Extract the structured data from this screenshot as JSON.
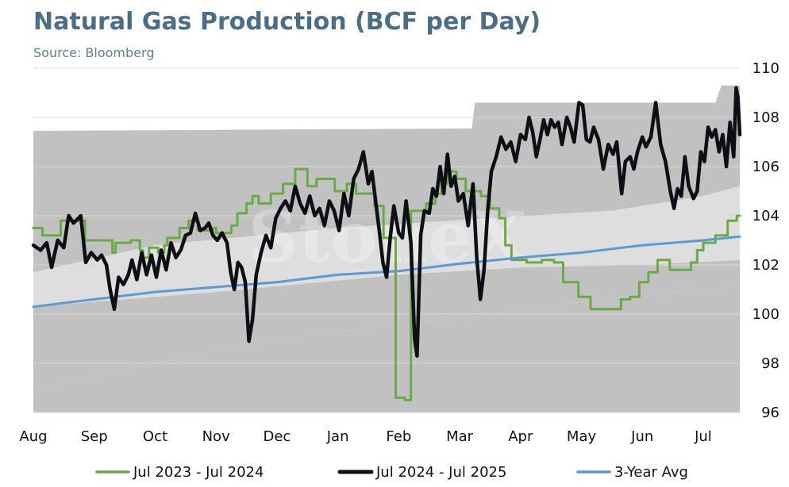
{
  "chart_data": {
    "type": "area",
    "title": "Natural Gas Production (BCF per Day)",
    "subtitle": "Source: Bloomberg",
    "watermark": "StoneX",
    "ylim": [
      96,
      110
    ],
    "yticks": [
      96,
      98,
      100,
      102,
      104,
      106,
      108,
      110
    ],
    "x_range": [
      0,
      11.6
    ],
    "month_labels": [
      "Aug",
      "Sep",
      "Oct",
      "Nov",
      "Dec",
      "Jan",
      "Feb",
      "Mar",
      "Apr",
      "May",
      "Jun",
      "Jul"
    ],
    "grid": "horizontal",
    "legend_position": "bottom",
    "colors": {
      "band_outer": "#c2c1c1",
      "band_inner": "#dedede",
      "series_green": "#6aaa45",
      "series_black": "#0d0f14",
      "series_blue": "#5b9bd5",
      "title": "#4a6e86",
      "subtitle": "#5b7f97"
    },
    "bands": {
      "outer_upper": [
        [
          0,
          107.45
        ],
        [
          7.2,
          107.55
        ],
        [
          7.25,
          108.6
        ],
        [
          11.2,
          108.6
        ],
        [
          11.3,
          109.3
        ],
        [
          11.6,
          109.3
        ]
      ],
      "inner_upper": [
        [
          0,
          101.7
        ],
        [
          2,
          102.8
        ],
        [
          5,
          103.5
        ],
        [
          7.5,
          103.9
        ],
        [
          9.5,
          104.2
        ],
        [
          11,
          104.8
        ],
        [
          11.6,
          105.2
        ]
      ],
      "inner_lower": [
        [
          0,
          100.3
        ],
        [
          3,
          100.9
        ],
        [
          6,
          101.6
        ],
        [
          8,
          101.9
        ],
        [
          10,
          102.0
        ],
        [
          11.6,
          102.2
        ]
      ],
      "outer_lower": [
        [
          0,
          96.9
        ],
        [
          1,
          97.5
        ],
        [
          2,
          98.0
        ],
        [
          3,
          98.5
        ],
        [
          4.5,
          99.1
        ],
        [
          6,
          99.6
        ],
        [
          7,
          99.8
        ],
        [
          8,
          100.2
        ],
        [
          9,
          100.5
        ],
        [
          10,
          100.8
        ],
        [
          11.6,
          101.1
        ]
      ]
    },
    "series": [
      {
        "name": "Jul 2023 - Jul 2024",
        "color": "#6aaa45",
        "step": true,
        "points": [
          [
            0,
            103.5
          ],
          [
            0.15,
            103.2
          ],
          [
            0.45,
            103.8
          ],
          [
            0.85,
            103.0
          ],
          [
            1.3,
            102.5
          ],
          [
            1.35,
            102.9
          ],
          [
            1.6,
            103.0
          ],
          [
            1.75,
            102.6
          ],
          [
            1.8,
            102.3
          ],
          [
            1.9,
            102.7
          ],
          [
            2.05,
            102.5
          ],
          [
            2.15,
            102.8
          ],
          [
            2.2,
            103.1
          ],
          [
            2.4,
            103.5
          ],
          [
            2.55,
            103.8
          ],
          [
            2.7,
            103.4
          ],
          [
            2.95,
            103.5
          ],
          [
            3.0,
            103.3
          ],
          [
            3.25,
            103.6
          ],
          [
            3.35,
            104.1
          ],
          [
            3.5,
            104.5
          ],
          [
            3.6,
            104.8
          ],
          [
            3.7,
            104.5
          ],
          [
            3.9,
            104.9
          ],
          [
            4.1,
            105.3
          ],
          [
            4.3,
            105.9
          ],
          [
            4.5,
            105.2
          ],
          [
            4.65,
            105.5
          ],
          [
            4.95,
            105.0
          ],
          [
            5.15,
            105.3
          ],
          [
            5.3,
            104.9
          ],
          [
            5.6,
            104.4
          ],
          [
            5.75,
            103.1
          ],
          [
            5.95,
            96.6
          ],
          [
            6.1,
            96.5
          ],
          [
            6.2,
            104.2
          ],
          [
            6.45,
            104.5
          ],
          [
            6.6,
            104.9
          ],
          [
            6.7,
            105.3
          ],
          [
            6.8,
            105.8
          ],
          [
            6.95,
            105.5
          ],
          [
            7.1,
            105.0
          ],
          [
            7.35,
            104.8
          ],
          [
            7.5,
            104.3
          ],
          [
            7.65,
            103.9
          ],
          [
            7.75,
            102.8
          ],
          [
            7.85,
            102.2
          ],
          [
            8.1,
            102.1
          ],
          [
            8.35,
            102.2
          ],
          [
            8.55,
            102.1
          ],
          [
            8.7,
            101.3
          ],
          [
            8.95,
            100.7
          ],
          [
            9.15,
            100.2
          ],
          [
            9.45,
            100.2
          ],
          [
            9.65,
            100.6
          ],
          [
            9.8,
            100.7
          ],
          [
            9.95,
            101.3
          ],
          [
            10.1,
            101.7
          ],
          [
            10.25,
            102.2
          ],
          [
            10.45,
            101.8
          ],
          [
            10.8,
            102.1
          ],
          [
            10.9,
            102.6
          ],
          [
            11.0,
            102.9
          ],
          [
            11.2,
            103.2
          ],
          [
            11.4,
            103.8
          ],
          [
            11.55,
            104.0
          ],
          [
            11.6,
            104.0
          ]
        ]
      },
      {
        "name": "Jul 2024 - Jul 2025",
        "color": "#0d0f14",
        "step": false,
        "points": [
          [
            0,
            102.8
          ],
          [
            0.12,
            102.6
          ],
          [
            0.22,
            102.9
          ],
          [
            0.3,
            101.9
          ],
          [
            0.4,
            103.0
          ],
          [
            0.5,
            102.7
          ],
          [
            0.58,
            104.0
          ],
          [
            0.66,
            103.7
          ],
          [
            0.78,
            104.0
          ],
          [
            0.86,
            102.1
          ],
          [
            0.95,
            102.5
          ],
          [
            1.05,
            102.2
          ],
          [
            1.12,
            102.4
          ],
          [
            1.2,
            102.0
          ],
          [
            1.26,
            101.0
          ],
          [
            1.33,
            100.2
          ],
          [
            1.4,
            101.5
          ],
          [
            1.48,
            101.2
          ],
          [
            1.56,
            101.6
          ],
          [
            1.62,
            102.2
          ],
          [
            1.7,
            101.4
          ],
          [
            1.78,
            102.5
          ],
          [
            1.86,
            101.6
          ],
          [
            1.94,
            102.4
          ],
          [
            2.02,
            101.5
          ],
          [
            2.1,
            102.6
          ],
          [
            2.18,
            101.8
          ],
          [
            2.26,
            102.9
          ],
          [
            2.34,
            102.3
          ],
          [
            2.42,
            102.6
          ],
          [
            2.5,
            103.2
          ],
          [
            2.58,
            103.3
          ],
          [
            2.66,
            104.1
          ],
          [
            2.74,
            103.4
          ],
          [
            2.82,
            103.5
          ],
          [
            2.88,
            103.7
          ],
          [
            2.95,
            103.2
          ],
          [
            3.02,
            103.0
          ],
          [
            3.1,
            103.3
          ],
          [
            3.18,
            102.9
          ],
          [
            3.24,
            101.7
          ],
          [
            3.3,
            101.0
          ],
          [
            3.36,
            102.1
          ],
          [
            3.42,
            101.9
          ],
          [
            3.48,
            101.3
          ],
          [
            3.54,
            98.9
          ],
          [
            3.6,
            99.8
          ],
          [
            3.66,
            101.6
          ],
          [
            3.74,
            102.5
          ],
          [
            3.82,
            103.2
          ],
          [
            3.9,
            102.7
          ],
          [
            3.98,
            103.9
          ],
          [
            4.06,
            104.3
          ],
          [
            4.14,
            104.6
          ],
          [
            4.22,
            104.2
          ],
          [
            4.3,
            105.2
          ],
          [
            4.38,
            104.5
          ],
          [
            4.46,
            104.1
          ],
          [
            4.54,
            104.8
          ],
          [
            4.62,
            104.0
          ],
          [
            4.7,
            104.3
          ],
          [
            4.78,
            103.6
          ],
          [
            4.86,
            104.6
          ],
          [
            4.94,
            104.2
          ],
          [
            5.02,
            103.4
          ],
          [
            5.1,
            104.9
          ],
          [
            5.18,
            104.0
          ],
          [
            5.26,
            105.5
          ],
          [
            5.34,
            105.9
          ],
          [
            5.42,
            106.6
          ],
          [
            5.5,
            105.3
          ],
          [
            5.56,
            105.8
          ],
          [
            5.62,
            104.6
          ],
          [
            5.68,
            103.4
          ],
          [
            5.74,
            102.1
          ],
          [
            5.8,
            101.5
          ],
          [
            5.86,
            103.1
          ],
          [
            5.92,
            104.4
          ],
          [
            6.0,
            103.3
          ],
          [
            6.06,
            103.1
          ],
          [
            6.12,
            104.6
          ],
          [
            6.2,
            102.9
          ],
          [
            6.26,
            99.0
          ],
          [
            6.3,
            98.3
          ],
          [
            6.36,
            103.2
          ],
          [
            6.42,
            104.2
          ],
          [
            6.5,
            104.1
          ],
          [
            6.56,
            105.1
          ],
          [
            6.62,
            104.8
          ],
          [
            6.68,
            106.0
          ],
          [
            6.74,
            104.9
          ],
          [
            6.8,
            106.5
          ],
          [
            6.86,
            105.2
          ],
          [
            6.92,
            105.6
          ],
          [
            6.98,
            104.6
          ],
          [
            7.06,
            104.9
          ],
          [
            7.14,
            103.6
          ],
          [
            7.22,
            105.3
          ],
          [
            7.28,
            102.3
          ],
          [
            7.34,
            100.6
          ],
          [
            7.4,
            101.8
          ],
          [
            7.46,
            104.2
          ],
          [
            7.52,
            105.8
          ],
          [
            7.6,
            106.4
          ],
          [
            7.68,
            107.2
          ],
          [
            7.76,
            106.7
          ],
          [
            7.84,
            107.0
          ],
          [
            7.92,
            106.2
          ],
          [
            8.0,
            107.3
          ],
          [
            8.08,
            107.1
          ],
          [
            8.14,
            108.0
          ],
          [
            8.2,
            107.4
          ],
          [
            8.26,
            106.4
          ],
          [
            8.32,
            107.1
          ],
          [
            8.38,
            107.9
          ],
          [
            8.44,
            107.3
          ],
          [
            8.5,
            107.9
          ],
          [
            8.56,
            107.6
          ],
          [
            8.62,
            107.8
          ],
          [
            8.68,
            106.9
          ],
          [
            8.76,
            108.0
          ],
          [
            8.82,
            107.6
          ],
          [
            8.88,
            107.0
          ],
          [
            8.96,
            108.6
          ],
          [
            9.02,
            108.5
          ],
          [
            9.08,
            107.1
          ],
          [
            9.14,
            107.0
          ],
          [
            9.2,
            107.6
          ],
          [
            9.28,
            107.1
          ],
          [
            9.36,
            105.9
          ],
          [
            9.44,
            106.9
          ],
          [
            9.52,
            106.5
          ],
          [
            9.58,
            107.0
          ],
          [
            9.66,
            104.9
          ],
          [
            9.72,
            106.2
          ],
          [
            9.8,
            106.4
          ],
          [
            9.86,
            105.9
          ],
          [
            9.92,
            106.6
          ],
          [
            10.0,
            107.2
          ],
          [
            10.06,
            106.8
          ],
          [
            10.14,
            107.2
          ],
          [
            10.22,
            108.6
          ],
          [
            10.3,
            106.9
          ],
          [
            10.38,
            106.2
          ],
          [
            10.46,
            105.0
          ],
          [
            10.52,
            104.3
          ],
          [
            10.58,
            105.1
          ],
          [
            10.64,
            104.8
          ],
          [
            10.7,
            106.4
          ],
          [
            10.76,
            105.2
          ],
          [
            10.84,
            104.7
          ],
          [
            10.9,
            105.0
          ],
          [
            10.96,
            106.6
          ],
          [
            11.02,
            106.2
          ],
          [
            11.08,
            107.6
          ],
          [
            11.14,
            107.2
          ],
          [
            11.2,
            107.5
          ],
          [
            11.26,
            106.6
          ],
          [
            11.32,
            107.3
          ],
          [
            11.38,
            106.0
          ],
          [
            11.44,
            107.8
          ],
          [
            11.5,
            106.4
          ],
          [
            11.54,
            109.2
          ],
          [
            11.57,
            108.8
          ],
          [
            11.6,
            107.3
          ]
        ]
      },
      {
        "name": "3-Year Avg",
        "color": "#5b9bd5",
        "step": false,
        "points": [
          [
            0,
            100.3
          ],
          [
            1,
            100.6
          ],
          [
            2,
            100.9
          ],
          [
            3,
            101.1
          ],
          [
            4,
            101.3
          ],
          [
            5,
            101.6
          ],
          [
            6,
            101.75
          ],
          [
            7,
            102.05
          ],
          [
            8,
            102.3
          ],
          [
            9,
            102.5
          ],
          [
            10,
            102.8
          ],
          [
            11,
            103.0
          ],
          [
            11.6,
            103.15
          ]
        ]
      }
    ]
  }
}
